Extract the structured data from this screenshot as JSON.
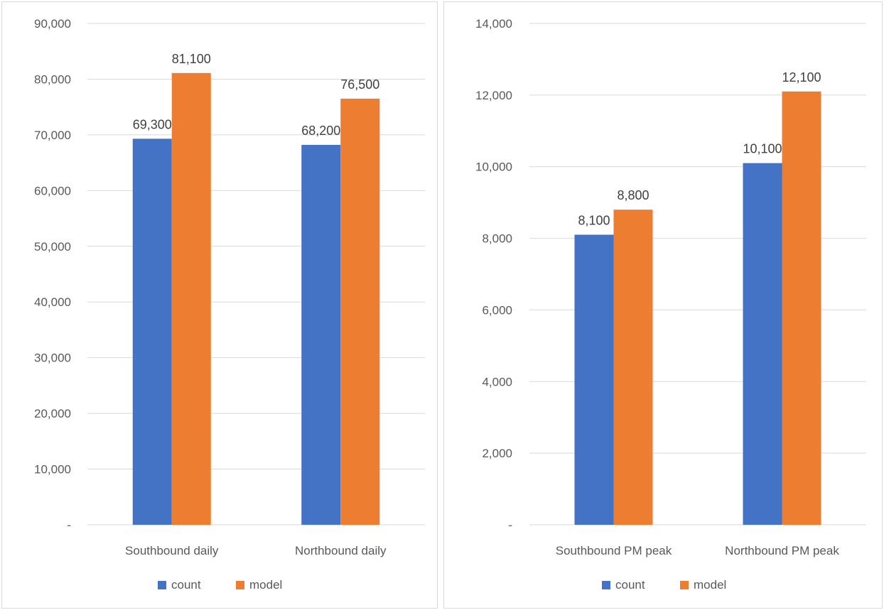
{
  "chart_data": [
    {
      "type": "bar",
      "categories": [
        "Southbound daily",
        "Northbound daily"
      ],
      "series": [
        {
          "name": "count",
          "color": "#4472C4",
          "values": [
            69300,
            68200
          ],
          "labels": [
            "69,300",
            "68,200"
          ]
        },
        {
          "name": "model",
          "color": "#ED7D31",
          "values": [
            81100,
            76500
          ],
          "labels": [
            "81,100",
            "76,500"
          ]
        }
      ],
      "ylim": [
        0,
        90000
      ],
      "yticks": [
        0,
        10000,
        20000,
        30000,
        40000,
        50000,
        60000,
        70000,
        80000,
        90000
      ],
      "ytick_labels": [
        "-",
        "10,000",
        "20,000",
        "30,000",
        "40,000",
        "50,000",
        "60,000",
        "70,000",
        "80,000",
        "90,000"
      ],
      "grid": true,
      "legend": "bottom"
    },
    {
      "type": "bar",
      "categories": [
        "Southbound PM peak",
        "Northbound PM peak"
      ],
      "series": [
        {
          "name": "count",
          "color": "#4472C4",
          "values": [
            8100,
            10100
          ],
          "labels": [
            "8,100",
            "10,100"
          ]
        },
        {
          "name": "model",
          "color": "#ED7D31",
          "values": [
            8800,
            12100
          ],
          "labels": [
            "8,800",
            "12,100"
          ]
        }
      ],
      "ylim": [
        0,
        14000
      ],
      "yticks": [
        0,
        2000,
        4000,
        6000,
        8000,
        10000,
        12000,
        14000
      ],
      "ytick_labels": [
        "-",
        "2,000",
        "4,000",
        "6,000",
        "8,000",
        "10,000",
        "12,000",
        "14,000"
      ],
      "grid": true,
      "legend": "bottom"
    }
  ]
}
